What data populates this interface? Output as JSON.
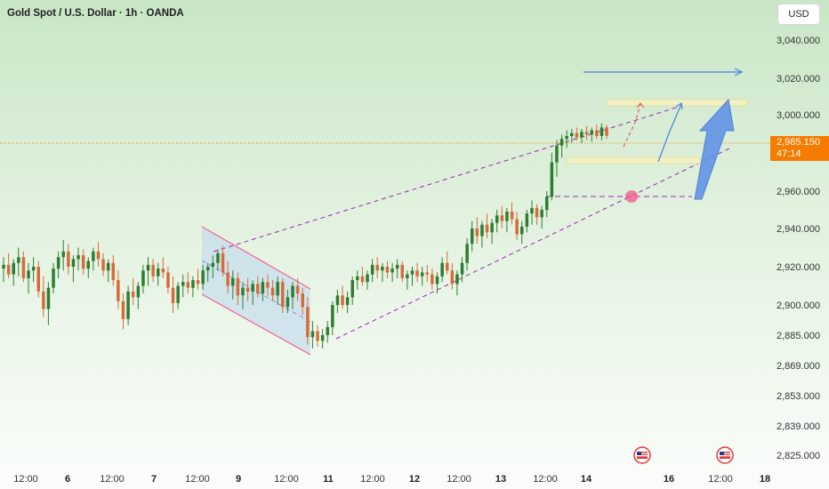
{
  "header": {
    "title": "Gold Spot / U.S. Dollar · 1h · OANDA",
    "currency_button": "USD"
  },
  "price_tag": {
    "price": "2,985.150",
    "countdown": "47:14"
  },
  "colors": {
    "bull": "#2e7d32",
    "bear": "#d86b3a",
    "channel": "#f06292",
    "trendline": "#9c27b0",
    "arrow": "#4a7fe0",
    "zone": "#f2f1c4",
    "current_price": "#f57c00"
  },
  "chart_data": {
    "type": "candlestick",
    "title": "Gold Spot / U.S. Dollar · 1h · OANDA",
    "y_tick_labels": [
      "3,040.000",
      "3,020.000",
      "3,000.000",
      "2,980.000",
      "2,960.000",
      "2,940.000",
      "2,920.000",
      "2,900.000",
      "2,885.000",
      "2,869.000",
      "2,853.000",
      "2,839.000",
      "2,825.000"
    ],
    "x_tick_labels": [
      {
        "label": "12:00",
        "bold": false
      },
      {
        "label": "6",
        "bold": true
      },
      {
        "label": "12:00",
        "bold": false
      },
      {
        "label": "7",
        "bold": true
      },
      {
        "label": "12:00",
        "bold": false
      },
      {
        "label": "9",
        "bold": true
      },
      {
        "label": "12:00",
        "bold": false
      },
      {
        "label": "11",
        "bold": true
      },
      {
        "label": "12:00",
        "bold": false
      },
      {
        "label": "12",
        "bold": true
      },
      {
        "label": "12:00",
        "bold": false
      },
      {
        "label": "13",
        "bold": true
      },
      {
        "label": "12:00",
        "bold": false
      },
      {
        "label": "14",
        "bold": true
      },
      {
        "label": "16",
        "bold": true
      },
      {
        "label": "12:00",
        "bold": false
      },
      {
        "label": "18",
        "bold": true
      }
    ],
    "current_price": 2985.15,
    "ohlc": [
      [
        2919,
        2925,
        2912,
        2921
      ],
      [
        2921,
        2927,
        2914,
        2916
      ],
      [
        2916,
        2924,
        2910,
        2922
      ],
      [
        2922,
        2930,
        2915,
        2925
      ],
      [
        2925,
        2928,
        2912,
        2914
      ],
      [
        2914,
        2922,
        2906,
        2918
      ],
      [
        2918,
        2925,
        2912,
        2920
      ],
      [
        2920,
        2923,
        2904,
        2907
      ],
      [
        2907,
        2915,
        2894,
        2898
      ],
      [
        2898,
        2912,
        2890,
        2909
      ],
      [
        2909,
        2922,
        2906,
        2919
      ],
      [
        2919,
        2928,
        2914,
        2925
      ],
      [
        2925,
        2934,
        2918,
        2928
      ],
      [
        2928,
        2932,
        2916,
        2920
      ],
      [
        2920,
        2926,
        2912,
        2924
      ],
      [
        2924,
        2930,
        2918,
        2926
      ],
      [
        2926,
        2929,
        2916,
        2919
      ],
      [
        2919,
        2925,
        2914,
        2923
      ],
      [
        2923,
        2930,
        2918,
        2928
      ],
      [
        2928,
        2933,
        2920,
        2924
      ],
      [
        2924,
        2927,
        2915,
        2918
      ],
      [
        2918,
        2924,
        2912,
        2922
      ],
      [
        2922,
        2926,
        2910,
        2913
      ],
      [
        2913,
        2918,
        2898,
        2902
      ],
      [
        2902,
        2906,
        2888,
        2893
      ],
      [
        2893,
        2910,
        2890,
        2907
      ],
      [
        2907,
        2914,
        2900,
        2904
      ],
      [
        2904,
        2912,
        2898,
        2910
      ],
      [
        2910,
        2921,
        2906,
        2918
      ],
      [
        2918,
        2925,
        2910,
        2921
      ],
      [
        2921,
        2924,
        2912,
        2915
      ],
      [
        2915,
        2922,
        2910,
        2919
      ],
      [
        2919,
        2925,
        2914,
        2917
      ],
      [
        2917,
        2920,
        2906,
        2909
      ],
      [
        2909,
        2915,
        2896,
        2901
      ],
      [
        2901,
        2912,
        2898,
        2910
      ],
      [
        2910,
        2916,
        2904,
        2912
      ],
      [
        2912,
        2917,
        2906,
        2909
      ],
      [
        2909,
        2915,
        2904,
        2913
      ],
      [
        2913,
        2919,
        2908,
        2911
      ],
      [
        2911,
        2921,
        2908,
        2918
      ],
      [
        2918,
        2922,
        2912,
        2920
      ],
      [
        2920,
        2926,
        2914,
        2922
      ],
      [
        2922,
        2929,
        2918,
        2927
      ],
      [
        2927,
        2931,
        2915,
        2917
      ],
      [
        2917,
        2923,
        2906,
        2910
      ],
      [
        2910,
        2918,
        2903,
        2914
      ],
      [
        2914,
        2917,
        2900,
        2905
      ],
      [
        2905,
        2912,
        2898,
        2909
      ],
      [
        2909,
        2914,
        2902,
        2907
      ],
      [
        2907,
        2913,
        2900,
        2911
      ],
      [
        2911,
        2915,
        2904,
        2906
      ],
      [
        2906,
        2914,
        2902,
        2912
      ],
      [
        2912,
        2916,
        2905,
        2909
      ],
      [
        2909,
        2913,
        2902,
        2905
      ],
      [
        2905,
        2915,
        2900,
        2912
      ],
      [
        2912,
        2914,
        2896,
        2899
      ],
      [
        2899,
        2908,
        2896,
        2904
      ],
      [
        2904,
        2912,
        2898,
        2910
      ],
      [
        2910,
        2914,
        2902,
        2906
      ],
      [
        2906,
        2909,
        2895,
        2899
      ],
      [
        2899,
        2904,
        2880,
        2884
      ],
      [
        2884,
        2892,
        2878,
        2887
      ],
      [
        2887,
        2890,
        2879,
        2882
      ],
      [
        2882,
        2888,
        2878,
        2885
      ],
      [
        2885,
        2892,
        2881,
        2889
      ],
      [
        2889,
        2902,
        2885,
        2900
      ],
      [
        2900,
        2908,
        2896,
        2905
      ],
      [
        2905,
        2910,
        2898,
        2900
      ],
      [
        2900,
        2907,
        2896,
        2904
      ],
      [
        2904,
        2915,
        2900,
        2913
      ],
      [
        2913,
        2918,
        2908,
        2915
      ],
      [
        2915,
        2920,
        2910,
        2912
      ],
      [
        2912,
        2918,
        2908,
        2916
      ],
      [
        2916,
        2924,
        2912,
        2921
      ],
      [
        2921,
        2925,
        2914,
        2918
      ],
      [
        2918,
        2922,
        2912,
        2920
      ],
      [
        2920,
        2923,
        2914,
        2917
      ],
      [
        2917,
        2922,
        2912,
        2919
      ],
      [
        2919,
        2924,
        2914,
        2921
      ],
      [
        2921,
        2923,
        2912,
        2914
      ],
      [
        2914,
        2918,
        2908,
        2916
      ],
      [
        2916,
        2920,
        2910,
        2918
      ],
      [
        2918,
        2922,
        2912,
        2915
      ],
      [
        2915,
        2920,
        2910,
        2917
      ],
      [
        2917,
        2921,
        2912,
        2916
      ],
      [
        2916,
        2919,
        2908,
        2911
      ],
      [
        2911,
        2917,
        2906,
        2915
      ],
      [
        2915,
        2925,
        2912,
        2922
      ],
      [
        2922,
        2928,
        2916,
        2918
      ],
      [
        2918,
        2922,
        2908,
        2911
      ],
      [
        2911,
        2918,
        2905,
        2916
      ],
      [
        2916,
        2925,
        2912,
        2922
      ],
      [
        2922,
        2935,
        2918,
        2932
      ],
      [
        2932,
        2944,
        2928,
        2940
      ],
      [
        2940,
        2946,
        2932,
        2936
      ],
      [
        2936,
        2944,
        2930,
        2942
      ],
      [
        2942,
        2948,
        2935,
        2938
      ],
      [
        2938,
        2945,
        2932,
        2943
      ],
      [
        2943,
        2950,
        2938,
        2947
      ],
      [
        2947,
        2952,
        2940,
        2944
      ],
      [
        2944,
        2951,
        2938,
        2949
      ],
      [
        2949,
        2954,
        2942,
        2945
      ],
      [
        2945,
        2949,
        2934,
        2937
      ],
      [
        2937,
        2944,
        2932,
        2941
      ],
      [
        2941,
        2950,
        2938,
        2948
      ],
      [
        2948,
        2955,
        2942,
        2951
      ],
      [
        2951,
        2953,
        2942,
        2946
      ],
      [
        2946,
        2952,
        2940,
        2950
      ],
      [
        2950,
        2960,
        2946,
        2957
      ],
      [
        2957,
        2976,
        2955,
        2972
      ],
      [
        2972,
        2982,
        2966,
        2979
      ],
      [
        2979,
        2986,
        2974,
        2983
      ],
      [
        2983,
        2989,
        2978,
        2985
      ],
      [
        2985,
        2990,
        2980,
        2987
      ],
      [
        2987,
        2991,
        2982,
        2984
      ],
      [
        2984,
        2990,
        2980,
        2988
      ],
      [
        2988,
        2992,
        2982,
        2986
      ],
      [
        2986,
        2991,
        2981,
        2989
      ],
      [
        2989,
        2993,
        2983,
        2985
      ],
      [
        2985,
        2994,
        2982,
        2991
      ],
      [
        2991,
        2993,
        2983,
        2985.15
      ]
    ],
    "annotations": {
      "descending_channel": true,
      "rising_channel_trendlines": true,
      "support_zone_top": true,
      "support_zone_lower": true,
      "target_arrow": true,
      "breakout_circle": true
    }
  }
}
